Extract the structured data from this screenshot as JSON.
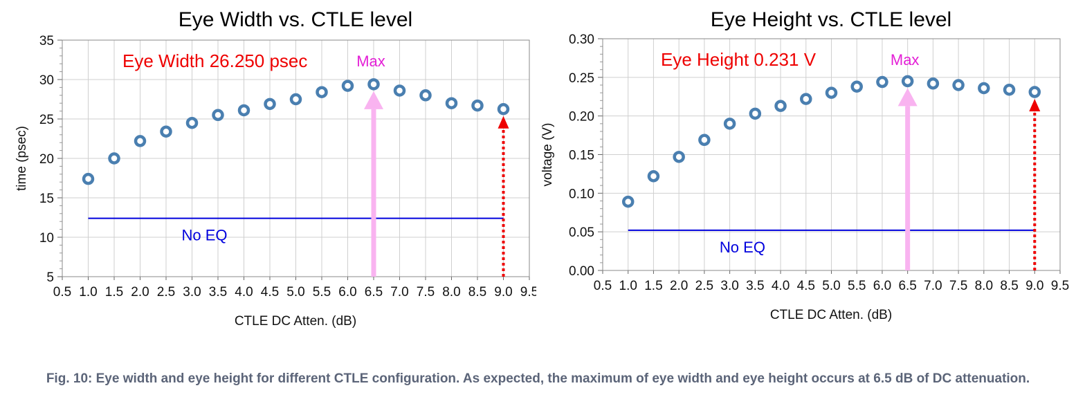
{
  "colors": {
    "marker": "#4a7fb0",
    "noeq": "#0000dd",
    "annotation": "#ee0000",
    "max": "#e41fd6",
    "max_arrow": "#f9b3f0",
    "grid": "#cfcfcf",
    "caption": "#5b6478"
  },
  "chart_data": [
    {
      "type": "scatter",
      "title": "Eye Width vs. CTLE level",
      "xlabel": "CTLE DC Atten. (dB)",
      "ylabel": "time (psec)",
      "xlim": [
        0.5,
        9.5
      ],
      "ylim": [
        5,
        35
      ],
      "x_ticks": [
        "0.5",
        "1.0",
        "1.5",
        "2.0",
        "2.5",
        "3.0",
        "3.5",
        "4.0",
        "4.5",
        "5.0",
        "5.5",
        "6.0",
        "6.5",
        "7.0",
        "7.5",
        "8.0",
        "8.5",
        "9.0",
        "9.5"
      ],
      "y_ticks": [
        "5",
        "10",
        "15",
        "20",
        "25",
        "30",
        "35"
      ],
      "grid": true,
      "x": [
        1.0,
        1.5,
        2.0,
        2.5,
        3.0,
        3.5,
        4.0,
        4.5,
        5.0,
        5.5,
        6.0,
        6.5,
        7.0,
        7.5,
        8.0,
        8.5,
        9.0
      ],
      "values": [
        17.4,
        20.0,
        22.2,
        23.4,
        24.5,
        25.5,
        26.1,
        26.9,
        27.5,
        28.4,
        29.2,
        29.4,
        28.6,
        28.0,
        27.0,
        26.7,
        26.25
      ],
      "baseline": {
        "label": "No EQ",
        "value": 12.4,
        "x_range": [
          1.0,
          9.0
        ]
      },
      "annotation": "Eye Width 26.250 psec",
      "max_label": "Max",
      "max_x": 6.5,
      "arrow_x": 9.0
    },
    {
      "type": "scatter",
      "title": "Eye Height vs. CTLE level",
      "xlabel": "CTLE DC Atten. (dB)",
      "ylabel": "voltage (V)",
      "xlim": [
        0.5,
        9.5
      ],
      "ylim": [
        0.0,
        0.3
      ],
      "x_ticks": [
        "0.5",
        "1.0",
        "1.5",
        "2.0",
        "2.5",
        "3.0",
        "3.5",
        "4.0",
        "4.5",
        "5.0",
        "5.5",
        "6.0",
        "6.5",
        "7.0",
        "7.5",
        "8.0",
        "8.5",
        "9.0",
        "9.5"
      ],
      "y_ticks": [
        "0.00",
        "0.05",
        "0.10",
        "0.15",
        "0.20",
        "0.25",
        "0.30"
      ],
      "grid": true,
      "x": [
        1.0,
        1.5,
        2.0,
        2.5,
        3.0,
        3.5,
        4.0,
        4.5,
        5.0,
        5.5,
        6.0,
        6.5,
        7.0,
        7.5,
        8.0,
        8.5,
        9.0
      ],
      "values": [
        0.089,
        0.122,
        0.147,
        0.169,
        0.19,
        0.203,
        0.213,
        0.222,
        0.23,
        0.238,
        0.244,
        0.245,
        0.242,
        0.24,
        0.236,
        0.234,
        0.231
      ],
      "baseline": {
        "label": "No EQ",
        "value": 0.052,
        "x_range": [
          1.0,
          9.0
        ]
      },
      "annotation": "Eye Height 0.231 V",
      "max_label": "Max",
      "max_x": 6.5,
      "arrow_x": 9.0
    }
  ],
  "caption": "Fig. 10: Eye width and eye height for different CTLE configuration. As expected, the maximum of eye width and eye height occurs at 6.5 dB of DC attenuation."
}
